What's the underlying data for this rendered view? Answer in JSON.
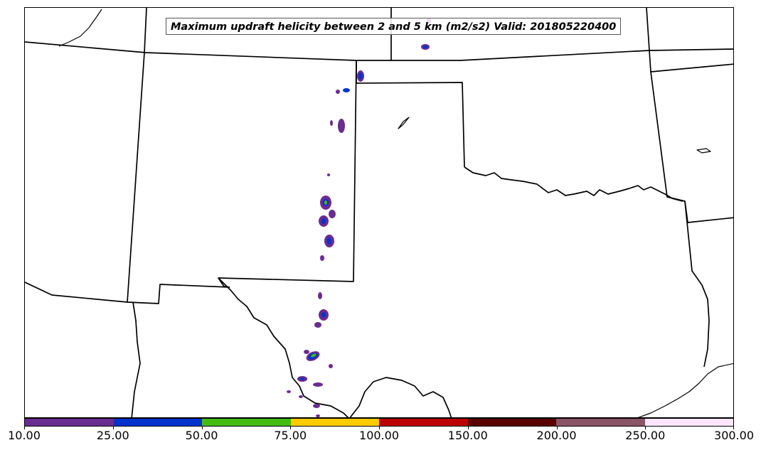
{
  "map": {
    "title": "Maximum updraft helicity between 2 and 5 km (m2/s2) Valid: 201805220400",
    "variable": "Maximum updraft helicity between 2 and 5 km",
    "units": "m2/s2",
    "valid_time": "201805220400",
    "region": "Southern Plains (New Mexico, Texas, Oklahoma, Kansas, Colorado)"
  },
  "colorbar": {
    "levels": [
      "10.00",
      "25.00",
      "50.00",
      "75.00",
      "100.00",
      "150.00",
      "200.00",
      "250.00",
      "300.00"
    ],
    "colors": [
      "#6a2c91",
      "#0033cc",
      "#44bb11",
      "#ffcc00",
      "#bb0000",
      "#5a0000",
      "#8a5566",
      "#ffe6ff"
    ]
  }
}
